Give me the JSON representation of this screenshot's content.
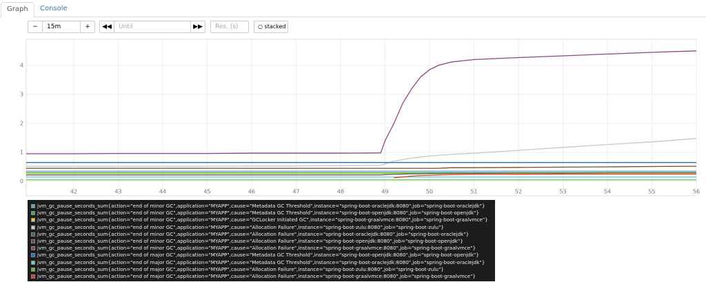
{
  "tabs": [
    "Graph",
    "Console"
  ],
  "controls": {
    "range": "15m",
    "until": "Until",
    "res": "Res. (s)",
    "stacked": "stacked"
  },
  "chart_data": {
    "type": "line",
    "x": [
      40.93,
      42,
      43,
      44,
      45,
      46,
      47,
      48,
      48.9,
      49,
      49.2,
      49.4,
      49.6,
      49.8,
      50,
      50.2,
      50.5,
      51,
      52,
      53,
      54,
      55,
      56
    ],
    "xlim": [
      40.93,
      56
    ],
    "xticks": [
      42,
      43,
      44,
      45,
      46,
      47,
      48,
      49,
      50,
      51,
      52,
      53,
      54,
      55,
      56
    ],
    "ylim": [
      -0.5,
      4.9
    ],
    "yticks": [
      0,
      1,
      2,
      3,
      4
    ],
    "grid": true,
    "series": [
      {
        "name": "jvm_gc_pause_seconds_sum{action=\"end of minor GC\",application=\"MYAPP\",cause=\"Metadata GC Threshold\",instance=\"spring-boot-oraclejdk:8080\",job=\"spring-boot-oraclejdk\"}",
        "color": "#5fa8d3",
        "values": [
          0.35,
          0.35,
          0.35,
          0.35,
          0.35,
          0.35,
          0.35,
          0.35,
          0.35,
          0.35,
          0.35,
          0.35,
          0.35,
          0.35,
          0.35,
          0.35,
          0.35,
          0.35,
          0.35,
          0.35,
          0.35,
          0.35,
          0.35
        ]
      },
      {
        "name": "jvm_gc_pause_seconds_sum{action=\"end of minor GC\",application=\"MYAPP\",cause=\"Metadata GC Threshold\",instance=\"spring-boot-openjdk:8080\",job=\"spring-boot-openjdk\"}",
        "color": "#3cb44b",
        "values": [
          0.3,
          0.3,
          0.3,
          0.3,
          0.3,
          0.3,
          0.3,
          0.3,
          0.3,
          0.3,
          0.3,
          0.3,
          0.3,
          0.3,
          0.3,
          0.3,
          0.3,
          0.3,
          0.3,
          0.3,
          0.3,
          0.3,
          0.3
        ]
      },
      {
        "name": "jvm_gc_pause_seconds_sum{action=\"end of minor GC\",application=\"MYAPP\",cause=\"GCLocker Initiated GC\",instance=\"spring-boot-graalvmce:8080\",job=\"spring-boot-graalvmce\"}",
        "color": "#e5c73a",
        "values": [
          0.27,
          0.27,
          0.27,
          0.27,
          0.27,
          0.27,
          0.27,
          0.27,
          0.27,
          0.27,
          0.27,
          0.27,
          0.27,
          0.27,
          0.27,
          0.27,
          0.27,
          0.27,
          0.27,
          0.27,
          0.27,
          0.27,
          0.27
        ]
      },
      {
        "name": "jvm_gc_pause_seconds_sum{action=\"end of minor GC\",application=\"MYAPP\",cause=\"Allocation Failure\",instance=\"spring-boot-zulu:8080\",job=\"spring-boot-zulu\"}",
        "color": "#c8c8c8",
        "values": [
          0.52,
          0.52,
          0.52,
          0.52,
          0.52,
          0.53,
          0.53,
          0.54,
          0.55,
          0.6,
          0.7,
          0.75,
          0.8,
          0.84,
          0.87,
          0.9,
          0.93,
          0.97,
          1.07,
          1.17,
          1.27,
          1.36,
          1.48
        ]
      },
      {
        "name": "jvm_gc_pause_seconds_sum{action=\"end of minor GC\",application=\"MYAPP\",cause=\"Allocation Failure\",instance=\"spring-boot-oraclejdk:8080\",job=\"spring-boot-oraclejdk\"}",
        "color": "#5a5a5a",
        "values": [
          0.22,
          0.22,
          0.22,
          0.22,
          0.22,
          0.22,
          0.22,
          0.22,
          0.22,
          0.23,
          0.24,
          0.25,
          0.26,
          0.26,
          0.27,
          0.27,
          0.28,
          0.28,
          0.29,
          0.29,
          0.3,
          0.3,
          0.3
        ]
      },
      {
        "name": "jvm_gc_pause_seconds_sum{action=\"end of minor GC\",application=\"MYAPP\",cause=\"Allocation Failure\",instance=\"spring-boot-openjdk:8080\",job=\"spring-boot-openjdk\"}",
        "color": "#7a4a2a",
        "values": [
          0.45,
          0.45,
          0.45,
          0.45,
          0.45,
          0.45,
          0.45,
          0.45,
          0.45,
          0.45,
          0.45,
          0.45,
          0.45,
          0.45,
          0.45,
          0.45,
          0.47,
          0.47,
          0.48,
          0.49,
          0.5,
          0.51,
          0.52
        ]
      },
      {
        "name": "jvm_gc_pause_seconds_sum{action=\"end of minor GC\",application=\"MYAPP\",cause=\"Allocation Failure\",instance=\"spring-boot-graalvmce:8080\",job=\"spring-boot-graalvmce\"}",
        "color": "#8e4585",
        "values": [
          0.95,
          0.95,
          0.96,
          0.96,
          0.96,
          0.97,
          0.97,
          0.97,
          0.98,
          1.4,
          2.0,
          2.7,
          3.2,
          3.6,
          3.85,
          4.0,
          4.12,
          4.2,
          4.27,
          4.33,
          4.39,
          4.45,
          4.5
        ]
      },
      {
        "name": "jvm_gc_pause_seconds_sum{action=\"end of major GC\",application=\"MYAPP\",cause=\"Metadata GC Threshold\",instance=\"spring-boot-openjdk:8080\",job=\"spring-boot-openjdk\"}",
        "color": "#2a6fb5",
        "values": [
          0.65,
          0.65,
          0.65,
          0.65,
          0.65,
          0.65,
          0.65,
          0.65,
          0.65,
          0.65,
          0.65,
          0.65,
          0.65,
          0.65,
          0.65,
          0.65,
          0.65,
          0.65,
          0.65,
          0.65,
          0.65,
          0.65,
          0.65
        ]
      },
      {
        "name": "jvm_gc_pause_seconds_sum{action=\"end of major GC\",application=\"MYAPP\",cause=\"Metadata GC Threshold\",instance=\"spring-boot-oraclejdk:8080\",job=\"spring-boot-oraclejdk\"}",
        "color": "#6ecfd5",
        "values": [
          0.15,
          0.15,
          0.15,
          0.15,
          0.15,
          0.15,
          0.15,
          0.15,
          0.15,
          0.15,
          0.15,
          0.15,
          0.15,
          0.15,
          0.15,
          0.15,
          0.15,
          0.15,
          0.15,
          0.15,
          0.15,
          0.15,
          0.15
        ]
      },
      {
        "name": "jvm_gc_pause_seconds_sum{action=\"end of major GC\",application=\"MYAPP\",cause=\"Allocation Failure\",instance=\"spring-boot-zulu:8080\",job=\"spring-boot-zulu\"}",
        "color": "#5bc236",
        "values": [
          0.05,
          0.05,
          0.05,
          0.05,
          0.05,
          0.05,
          0.05,
          0.05,
          0.05,
          0.05,
          0.05,
          0.05,
          0.05,
          0.05,
          0.05,
          0.05,
          0.05,
          0.05,
          0.05,
          0.05,
          0.05,
          0.05,
          0.05
        ]
      },
      {
        "name": "jvm_gc_pause_seconds_sum{action=\"end of major GC\",application=\"MYAPP\",cause=\"Allocation Failure\",instance=\"spring-boot-graalvmce:8080\",job=\"spring-boot-graalvmce\"}",
        "color": "#d4462a",
        "values": [
          null,
          null,
          null,
          null,
          null,
          null,
          null,
          null,
          null,
          null,
          0.12,
          0.15,
          0.18,
          0.2,
          0.21,
          0.22,
          0.23,
          0.24,
          0.24,
          0.25,
          0.25,
          0.25,
          0.25
        ]
      }
    ]
  }
}
